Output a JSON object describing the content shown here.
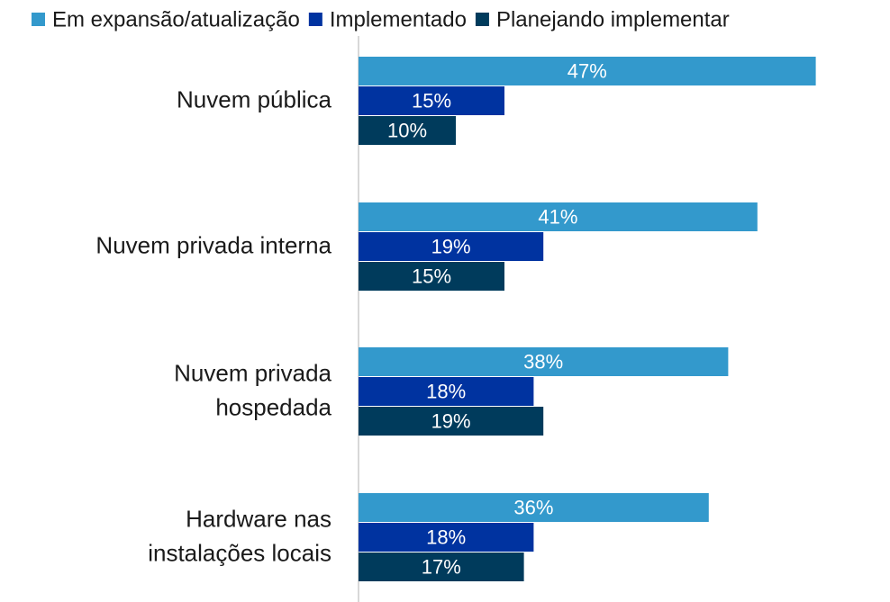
{
  "chart_data": {
    "type": "hbar",
    "categories": [
      "Nuvem pública",
      "Nuvem privada interna",
      "Nuvem privada\nhospedada",
      "Hardware nas\ninstalações locais"
    ],
    "series": [
      {
        "name": "Em expansão/atualização",
        "color": "#3399cc",
        "values": [
          47,
          41,
          38,
          36
        ],
        "value_labels": [
          "47%",
          "41%",
          "38%",
          "36%"
        ]
      },
      {
        "name": "Implementado",
        "color": "#0033a0",
        "values": [
          15,
          19,
          18,
          18
        ],
        "value_labels": [
          "15%",
          "19%",
          "18%",
          "18%"
        ]
      },
      {
        "name": "Planejando implementar",
        "color": "#003b5c",
        "values": [
          10,
          15,
          19,
          17
        ],
        "value_labels": [
          "10%",
          "15%",
          "19%",
          "17%"
        ]
      }
    ],
    "xlim": [
      0,
      50
    ],
    "legend": "top"
  }
}
